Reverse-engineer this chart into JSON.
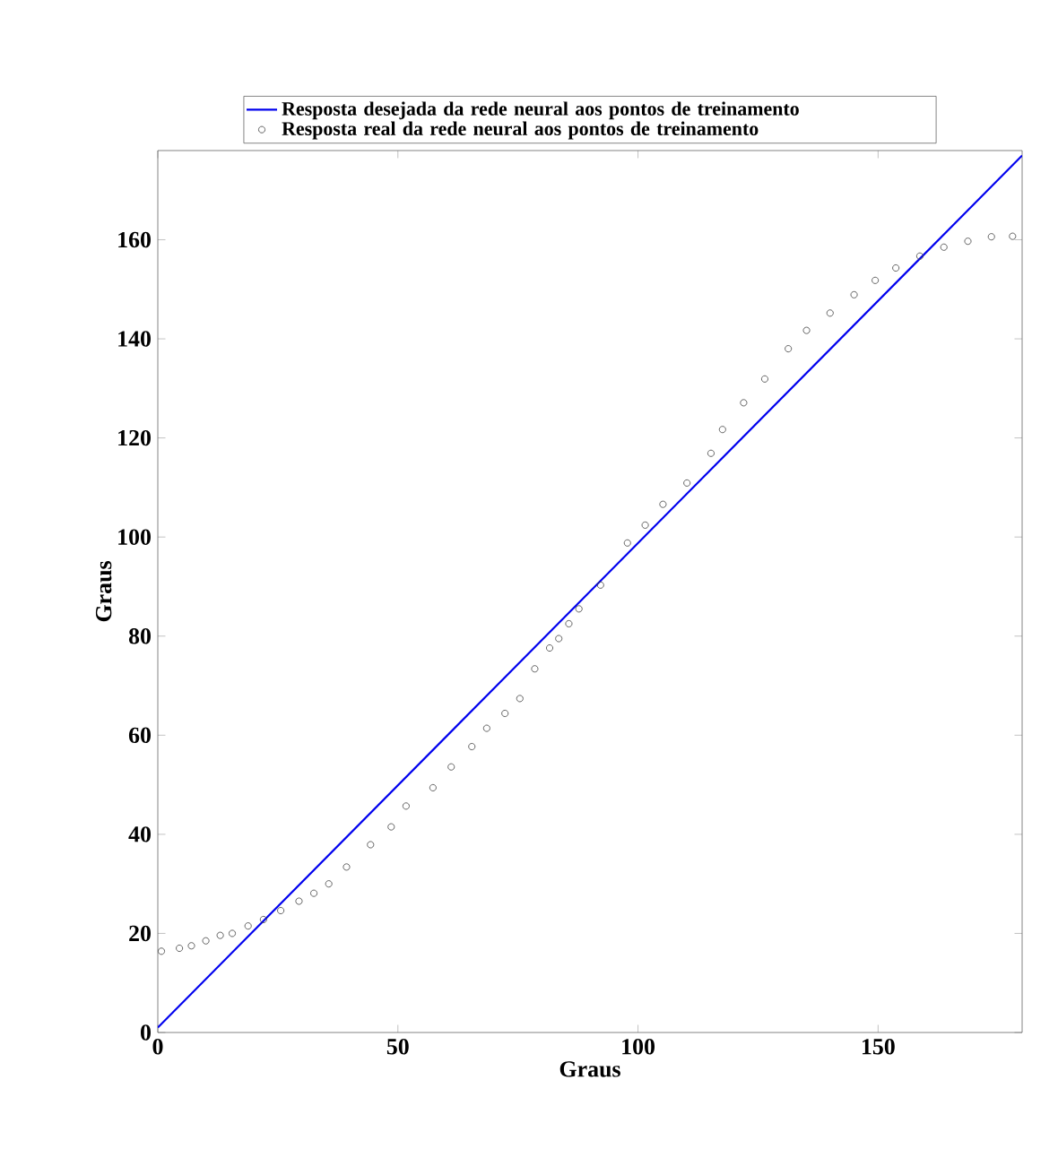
{
  "chart_data": {
    "type": "line",
    "xlabel": "Graus",
    "ylabel": "Graus",
    "xlim": [
      0,
      180
    ],
    "ylim": [
      0,
      178
    ],
    "xticks": [
      0,
      50,
      100,
      150
    ],
    "yticks": [
      0,
      20,
      40,
      60,
      80,
      100,
      120,
      140,
      160
    ],
    "grid": false,
    "legend": "top",
    "series": [
      {
        "name": "Resposta desejada da rede neural aos pontos de treinamento",
        "color": "#0000ee",
        "marker": "none",
        "line_style": "solid",
        "x": [
          0,
          180
        ],
        "values": [
          1,
          177
        ]
      },
      {
        "name": "Resposta real da rede neural aos pontos de treinamento",
        "type": "scatter",
        "color": "#404040",
        "marker": "circle",
        "x": [
          0.75,
          4.5,
          7,
          10,
          13,
          15.5,
          18.8,
          22,
          25.6,
          29.4,
          32.5,
          35.6,
          39.3,
          44.3,
          48.6,
          51.7,
          57.3,
          61.1,
          65.4,
          68.5,
          72.3,
          75.4,
          78.5,
          81.6,
          83.5,
          85.6,
          87.7,
          92.2,
          97.8,
          101.5,
          105.2,
          110.2,
          115.2,
          117.6,
          122,
          126.4,
          131.3,
          135.1,
          140,
          145,
          149.4,
          153.7,
          158.7,
          163.7,
          168.7,
          173.6,
          178
        ],
        "values": [
          16.4,
          17,
          17.5,
          18.5,
          19.6,
          20,
          21.5,
          22.8,
          24.6,
          26.5,
          28.1,
          30,
          33.4,
          37.9,
          41.5,
          45.7,
          49.4,
          53.6,
          57.7,
          61.4,
          64.4,
          67.4,
          73.4,
          77.6,
          79.5,
          82.5,
          85.5,
          90.3,
          98.8,
          102.4,
          106.6,
          110.9,
          116.9,
          121.7,
          127.1,
          131.9,
          138,
          141.7,
          145.2,
          148.9,
          151.8,
          154.3,
          156.7,
          158.5,
          159.7,
          160.6,
          160.7
        ]
      }
    ]
  }
}
